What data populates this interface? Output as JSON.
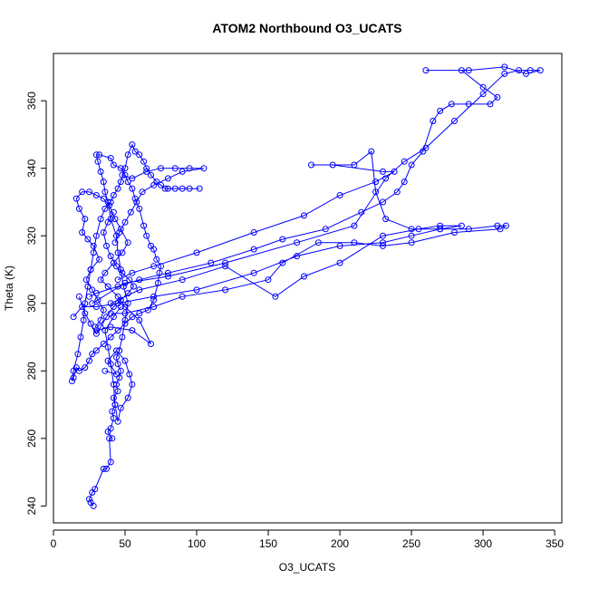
{
  "chart_data": {
    "type": "scatter",
    "title": "ATOM2 Northbound O3_UCATS",
    "xlabel": "O3_UCATS",
    "ylabel": "Theta (K)",
    "xlim": [
      0,
      355
    ],
    "ylim": [
      235,
      374
    ],
    "xticks": [
      0,
      50,
      100,
      150,
      200,
      250,
      300,
      350
    ],
    "yticks": [
      240,
      260,
      280,
      300,
      320,
      340,
      360
    ],
    "grid": false,
    "mode": "lines+markers",
    "color": "#0000ff",
    "series": [
      {
        "values": [
          [
            26,
            241
          ],
          [
            28,
            240
          ],
          [
            25,
            242
          ],
          [
            27,
            244
          ],
          [
            29,
            245
          ],
          [
            35,
            251
          ],
          [
            37,
            251
          ],
          [
            40,
            253
          ],
          [
            39,
            260
          ],
          [
            41,
            260
          ],
          [
            38,
            262
          ],
          [
            40,
            263
          ],
          [
            42,
            266
          ],
          [
            41,
            268
          ],
          [
            43,
            270
          ],
          [
            42,
            272
          ],
          [
            45,
            274
          ],
          [
            44,
            276
          ],
          [
            46,
            278
          ],
          [
            47,
            280
          ],
          [
            45,
            282
          ],
          [
            44,
            284
          ],
          [
            46,
            286
          ],
          [
            48,
            290
          ],
          [
            50,
            295
          ],
          [
            52,
            300
          ],
          [
            49,
            305
          ],
          [
            47,
            310
          ],
          [
            45,
            315
          ],
          [
            44,
            320
          ],
          [
            40,
            325
          ],
          [
            38,
            330
          ],
          [
            36,
            333
          ],
          [
            35,
            336
          ],
          [
            33,
            339
          ],
          [
            31,
            342
          ],
          [
            30,
            344
          ],
          [
            32,
            344
          ],
          [
            40,
            343
          ],
          [
            42,
            341
          ],
          [
            47,
            340
          ],
          [
            50,
            338
          ],
          [
            52,
            336
          ],
          [
            55,
            334
          ],
          [
            57,
            331
          ],
          [
            60,
            328
          ],
          [
            63,
            323
          ],
          [
            65,
            320
          ],
          [
            68,
            317
          ],
          [
            70,
            316
          ],
          [
            72,
            313
          ],
          [
            75,
            311
          ],
          [
            74,
            309
          ],
          [
            73,
            306
          ],
          [
            70,
            301
          ],
          [
            66,
            298
          ],
          [
            60,
            297
          ],
          [
            55,
            296
          ],
          [
            50,
            294
          ],
          [
            45,
            292
          ],
          [
            40,
            290
          ],
          [
            35,
            288
          ],
          [
            30,
            286
          ],
          [
            27,
            285
          ],
          [
            25,
            283
          ],
          [
            22,
            281
          ],
          [
            18,
            280
          ],
          [
            16,
            281
          ],
          [
            14,
            278
          ],
          [
            13,
            277
          ],
          [
            14,
            280
          ],
          [
            17,
            285
          ],
          [
            19,
            290
          ],
          [
            21,
            295
          ],
          [
            22,
            300
          ],
          [
            24,
            305
          ],
          [
            26,
            310
          ],
          [
            28,
            315
          ],
          [
            30,
            320
          ],
          [
            33,
            325
          ],
          [
            36,
            328
          ],
          [
            40,
            330
          ],
          [
            42,
            332
          ],
          [
            45,
            334
          ],
          [
            47,
            336
          ],
          [
            50,
            340
          ],
          [
            52,
            344
          ],
          [
            55,
            347
          ],
          [
            57,
            345
          ],
          [
            60,
            344
          ],
          [
            63,
            342
          ],
          [
            65,
            340
          ],
          [
            68,
            338
          ],
          [
            72,
            336
          ],
          [
            75,
            335
          ],
          [
            78,
            334
          ],
          [
            80,
            334
          ],
          [
            85,
            334
          ],
          [
            90,
            334
          ],
          [
            95,
            334
          ],
          [
            102,
            334
          ]
        ]
      },
      {
        "values": [
          [
            14,
            296
          ],
          [
            20,
            299
          ],
          [
            30,
            299
          ],
          [
            45,
            300
          ],
          [
            70,
            302
          ],
          [
            100,
            304
          ],
          [
            140,
            309
          ],
          [
            170,
            314
          ],
          [
            200,
            317
          ],
          [
            230,
            318
          ],
          [
            250,
            320
          ],
          [
            270,
            322
          ],
          [
            290,
            322
          ],
          [
            310,
            323
          ],
          [
            316,
            323
          ],
          [
            312,
            322
          ],
          [
            280,
            321
          ],
          [
            250,
            318
          ],
          [
            230,
            317
          ],
          [
            210,
            318
          ],
          [
            185,
            318
          ],
          [
            160,
            312
          ],
          [
            150,
            307
          ],
          [
            120,
            304
          ],
          [
            90,
            302
          ],
          [
            70,
            299
          ],
          [
            50,
            297
          ],
          [
            40,
            297
          ]
        ]
      },
      {
        "values": [
          [
            27,
            300
          ],
          [
            50,
            306
          ],
          [
            80,
            308
          ],
          [
            120,
            312
          ],
          [
            170,
            318
          ],
          [
            210,
            323
          ],
          [
            232,
            337
          ],
          [
            245,
            342
          ],
          [
            260,
            346
          ],
          [
            280,
            354
          ],
          [
            300,
            362
          ],
          [
            315,
            368
          ],
          [
            325,
            369
          ],
          [
            333,
            369
          ],
          [
            340,
            369
          ],
          [
            330,
            368
          ],
          [
            315,
            370
          ],
          [
            290,
            369
          ],
          [
            260,
            369
          ],
          [
            285,
            369
          ],
          [
            300,
            364
          ],
          [
            310,
            361
          ],
          [
            305,
            359
          ],
          [
            290,
            359
          ],
          [
            278,
            359
          ],
          [
            270,
            357
          ],
          [
            265,
            354
          ],
          [
            258,
            345
          ],
          [
            250,
            341
          ],
          [
            245,
            336
          ],
          [
            240,
            333
          ],
          [
            230,
            330
          ],
          [
            215,
            327
          ],
          [
            190,
            322
          ],
          [
            160,
            319
          ],
          [
            140,
            316
          ],
          [
            110,
            312
          ],
          [
            80,
            309
          ],
          [
            60,
            307
          ],
          [
            45,
            305
          ],
          [
            30,
            303
          ],
          [
            25,
            302
          ]
        ]
      },
      {
        "values": [
          [
            40,
            300
          ],
          [
            60,
            304
          ],
          [
            90,
            307
          ],
          [
            120,
            311
          ],
          [
            155,
            302
          ],
          [
            175,
            308
          ],
          [
            200,
            312
          ],
          [
            230,
            320
          ],
          [
            255,
            322
          ],
          [
            270,
            323
          ],
          [
            285,
            323
          ],
          [
            270,
            322
          ],
          [
            250,
            322
          ],
          [
            232,
            325
          ],
          [
            225,
            333
          ],
          [
            222,
            345
          ],
          [
            210,
            341
          ],
          [
            180,
            341
          ],
          [
            195,
            341
          ],
          [
            230,
            339
          ],
          [
            238,
            339
          ],
          [
            225,
            336
          ],
          [
            200,
            332
          ],
          [
            175,
            326
          ],
          [
            140,
            321
          ],
          [
            100,
            315
          ],
          [
            70,
            311
          ],
          [
            55,
            309
          ],
          [
            45,
            307
          ]
        ]
      },
      {
        "values": [
          [
            30,
            292
          ],
          [
            40,
            293
          ],
          [
            55,
            292
          ],
          [
            68,
            288
          ],
          [
            60,
            295
          ],
          [
            50,
            299
          ],
          [
            45,
            302
          ],
          [
            38,
            305
          ],
          [
            33,
            307
          ],
          [
            36,
            309
          ],
          [
            42,
            312
          ],
          [
            48,
            315
          ],
          [
            52,
            318
          ],
          [
            47,
            322
          ],
          [
            43,
            325
          ],
          [
            39,
            329
          ],
          [
            35,
            331
          ],
          [
            30,
            332
          ],
          [
            25,
            333
          ],
          [
            20,
            333
          ],
          [
            16,
            331
          ],
          [
            18,
            328
          ],
          [
            22,
            325
          ],
          [
            20,
            321
          ],
          [
            24,
            319
          ],
          [
            28,
            317
          ],
          [
            32,
            313
          ],
          [
            26,
            310
          ],
          [
            23,
            307
          ],
          [
            27,
            304
          ],
          [
            31,
            301
          ],
          [
            35,
            298
          ],
          [
            33,
            295
          ],
          [
            29,
            293
          ]
        ]
      },
      {
        "values": [
          [
            36,
            280
          ],
          [
            44,
            279
          ],
          [
            38,
            283
          ],
          [
            44,
            286
          ],
          [
            50,
            283
          ],
          [
            53,
            279
          ],
          [
            55,
            276
          ],
          [
            52,
            272
          ],
          [
            47,
            269
          ],
          [
            45,
            265
          ],
          [
            43,
            270
          ],
          [
            42,
            276
          ],
          [
            40,
            282
          ],
          [
            38,
            287
          ],
          [
            36,
            292
          ],
          [
            42,
            296
          ],
          [
            47,
            299
          ]
        ]
      },
      {
        "values": [
          [
            48,
            338
          ],
          [
            55,
            337
          ],
          [
            65,
            339
          ],
          [
            75,
            340
          ],
          [
            85,
            340
          ],
          [
            95,
            340
          ],
          [
            105,
            340
          ],
          [
            90,
            339
          ],
          [
            80,
            337
          ],
          [
            70,
            335
          ],
          [
            62,
            333
          ],
          [
            58,
            330
          ],
          [
            54,
            327
          ],
          [
            50,
            324
          ],
          [
            46,
            321
          ],
          [
            43,
            318
          ]
        ]
      },
      {
        "values": [
          [
            18,
            302
          ],
          [
            22,
            297
          ],
          [
            26,
            294
          ],
          [
            30,
            291
          ],
          [
            33,
            293
          ],
          [
            37,
            296
          ],
          [
            42,
            299
          ],
          [
            47,
            301
          ],
          [
            52,
            303
          ],
          [
            56,
            305
          ],
          [
            53,
            307
          ],
          [
            48,
            309
          ],
          [
            44,
            311
          ],
          [
            40,
            314
          ],
          [
            37,
            317
          ],
          [
            35,
            321
          ],
          [
            38,
            324
          ],
          [
            42,
            327
          ]
        ]
      }
    ]
  }
}
